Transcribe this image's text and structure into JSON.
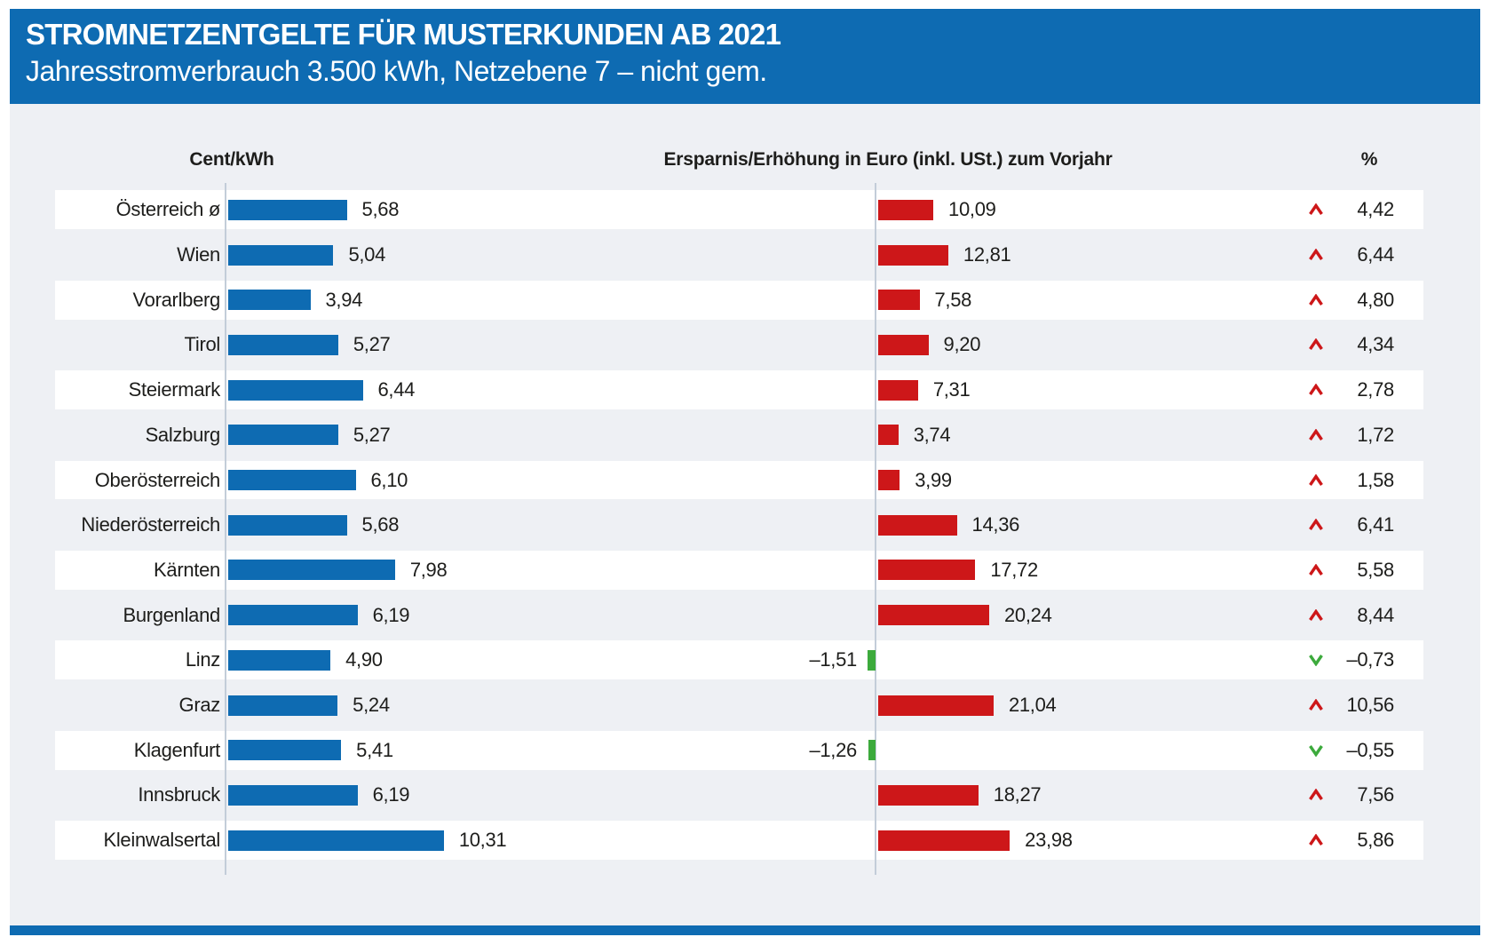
{
  "header": {
    "title": "STROMNETZENTGELTE FÜR MUSTERKUNDEN AB 2021",
    "subtitle": "Jahresstromverbrauch 3.500 kWh, Netzebene 7 – nicht gem."
  },
  "columns": {
    "cent": "Cent/kWh",
    "euro": "Ersparnis/Erhöhung in Euro (inkl. USt.) zum Vorjahr",
    "pct": "%"
  },
  "rows": [
    {
      "label": "Österreich ø",
      "cent": 5.68,
      "cent_label": "5,68",
      "euro": 10.09,
      "euro_label": "10,09",
      "pct": 4.42,
      "pct_label": "4,42",
      "direction": "up"
    },
    {
      "label": "Wien",
      "cent": 5.04,
      "cent_label": "5,04",
      "euro": 12.81,
      "euro_label": "12,81",
      "pct": 6.44,
      "pct_label": "6,44",
      "direction": "up"
    },
    {
      "label": "Vorarlberg",
      "cent": 3.94,
      "cent_label": "3,94",
      "euro": 7.58,
      "euro_label": "7,58",
      "pct": 4.8,
      "pct_label": "4,80",
      "direction": "up"
    },
    {
      "label": "Tirol",
      "cent": 5.27,
      "cent_label": "5,27",
      "euro": 9.2,
      "euro_label": "9,20",
      "pct": 4.34,
      "pct_label": "4,34",
      "direction": "up"
    },
    {
      "label": "Steiermark",
      "cent": 6.44,
      "cent_label": "6,44",
      "euro": 7.31,
      "euro_label": "7,31",
      "pct": 2.78,
      "pct_label": "2,78",
      "direction": "up"
    },
    {
      "label": "Salzburg",
      "cent": 5.27,
      "cent_label": "5,27",
      "euro": 3.74,
      "euro_label": "3,74",
      "pct": 1.72,
      "pct_label": "1,72",
      "direction": "up"
    },
    {
      "label": "Oberösterreich",
      "cent": 6.1,
      "cent_label": "6,10",
      "euro": 3.99,
      "euro_label": "3,99",
      "pct": 1.58,
      "pct_label": "1,58",
      "direction": "up"
    },
    {
      "label": "Niederösterreich",
      "cent": 5.68,
      "cent_label": "5,68",
      "euro": 14.36,
      "euro_label": "14,36",
      "pct": 6.41,
      "pct_label": "6,41",
      "direction": "up"
    },
    {
      "label": "Kärnten",
      "cent": 7.98,
      "cent_label": "7,98",
      "euro": 17.72,
      "euro_label": "17,72",
      "pct": 5.58,
      "pct_label": "5,58",
      "direction": "up"
    },
    {
      "label": "Burgenland",
      "cent": 6.19,
      "cent_label": "6,19",
      "euro": 20.24,
      "euro_label": "20,24",
      "pct": 8.44,
      "pct_label": "8,44",
      "direction": "up"
    },
    {
      "label": "Linz",
      "cent": 4.9,
      "cent_label": "4,90",
      "euro": -1.51,
      "euro_label": "–1,51",
      "pct": -0.73,
      "pct_label": "–0,73",
      "direction": "down"
    },
    {
      "label": "Graz",
      "cent": 5.24,
      "cent_label": "5,24",
      "euro": 21.04,
      "euro_label": "21,04",
      "pct": 10.56,
      "pct_label": "10,56",
      "direction": "up"
    },
    {
      "label": "Klagenfurt",
      "cent": 5.41,
      "cent_label": "5,41",
      "euro": -1.26,
      "euro_label": "–1,26",
      "pct": -0.55,
      "pct_label": "–0,55",
      "direction": "down"
    },
    {
      "label": "Innsbruck",
      "cent": 6.19,
      "cent_label": "6,19",
      "euro": 18.27,
      "euro_label": "18,27",
      "pct": 7.56,
      "pct_label": "7,56",
      "direction": "up"
    },
    {
      "label": "Kleinwalsertal",
      "cent": 10.31,
      "cent_label": "10,31",
      "euro": 23.98,
      "euro_label": "23,98",
      "pct": 5.86,
      "pct_label": "5,86",
      "direction": "up"
    }
  ],
  "colors": {
    "blue": "#0e6bb2",
    "red": "#cd1719",
    "green": "#3caa3c",
    "chart_background": "#eef0f4",
    "axis": "#c3cdd9",
    "text": "#1d1d1b"
  },
  "chart_data": {
    "type": "bar",
    "orientation": "horizontal",
    "title": "STROMNETZENTGELTE FÜR MUSTERKUNDEN AB 2021",
    "subtitle": "Jahresstromverbrauch 3.500 kWh, Netzebene 7 – nicht gem.",
    "categories": [
      "Österreich ø",
      "Wien",
      "Vorarlberg",
      "Tirol",
      "Steiermark",
      "Salzburg",
      "Oberösterreich",
      "Niederösterreich",
      "Kärnten",
      "Burgenland",
      "Linz",
      "Graz",
      "Klagenfurt",
      "Innsbruck",
      "Kleinwalsertal"
    ],
    "series": [
      {
        "name": "Cent/kWh",
        "values": [
          5.68,
          5.04,
          3.94,
          5.27,
          6.44,
          5.27,
          6.1,
          5.68,
          7.98,
          6.19,
          4.9,
          5.24,
          5.41,
          6.19,
          10.31
        ]
      },
      {
        "name": "Ersparnis/Erhöhung in Euro (inkl. USt.) zum Vorjahr",
        "values": [
          10.09,
          12.81,
          7.58,
          9.2,
          7.31,
          3.74,
          3.99,
          14.36,
          17.72,
          20.24,
          -1.51,
          21.04,
          -1.26,
          18.27,
          23.98
        ]
      },
      {
        "name": "%",
        "values": [
          4.42,
          6.44,
          4.8,
          4.34,
          2.78,
          1.72,
          1.58,
          6.41,
          5.58,
          8.44,
          -0.73,
          10.56,
          -0.55,
          7.56,
          5.86
        ]
      }
    ],
    "legend": false,
    "grid": false,
    "notes": "positive euro/percent changes shown red with up caret, negative shown green with down caret; Cent/kWh bars blue"
  }
}
